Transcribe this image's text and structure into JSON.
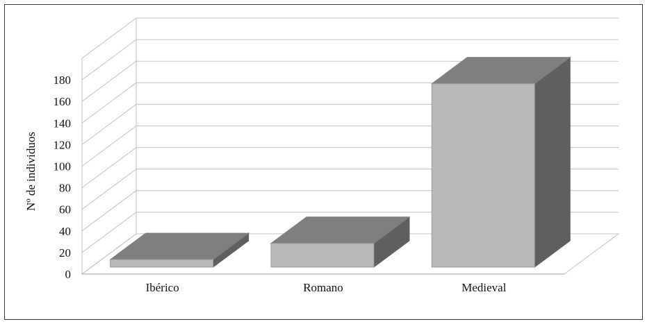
{
  "chart_data": {
    "type": "bar",
    "style": "3d-column",
    "categories": [
      "Ibérico",
      "Romano",
      "Medieval"
    ],
    "values": [
      7,
      22,
      170
    ],
    "ylabel": "Nº de individuos",
    "xlabel": "",
    "ylim": [
      0,
      180
    ],
    "yticks": [
      0,
      20,
      40,
      60,
      80,
      100,
      120,
      140,
      160,
      180
    ],
    "grid": true,
    "legend": "none",
    "colors": {
      "front": "#b9b9b9",
      "top": "#7f7f7f",
      "side": "#5f5f5f",
      "edge": "#9a9a9a",
      "grid": "#c0c0c0"
    }
  }
}
